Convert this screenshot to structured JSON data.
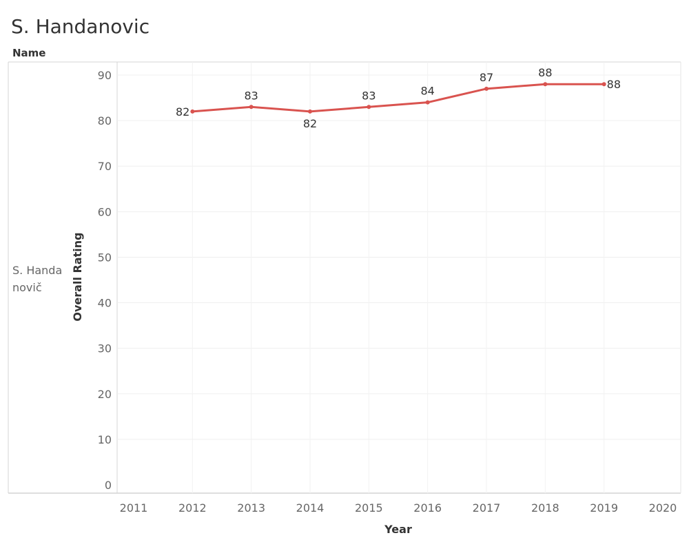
{
  "header": {
    "title": "S. Handanovic",
    "row_field": "Name",
    "row_value": "S. Handanovič"
  },
  "chart_data": {
    "type": "line",
    "title": "S. Handanovic",
    "xlabel": "Year",
    "ylabel": "Overall Rating",
    "x_ticks": [
      2011,
      2012,
      2013,
      2014,
      2015,
      2016,
      2017,
      2018,
      2019,
      2020
    ],
    "y_ticks": [
      0,
      10,
      20,
      30,
      40,
      50,
      60,
      70,
      80,
      90
    ],
    "xlim": [
      2011,
      2020
    ],
    "ylim": [
      0,
      90
    ],
    "grid": true,
    "series": [
      {
        "color": "#d9534f",
        "x": [
          2012,
          2013,
          2014,
          2015,
          2016,
          2017,
          2018,
          2019
        ],
        "y": [
          82,
          83,
          82,
          83,
          84,
          87,
          88,
          88
        ]
      }
    ]
  }
}
